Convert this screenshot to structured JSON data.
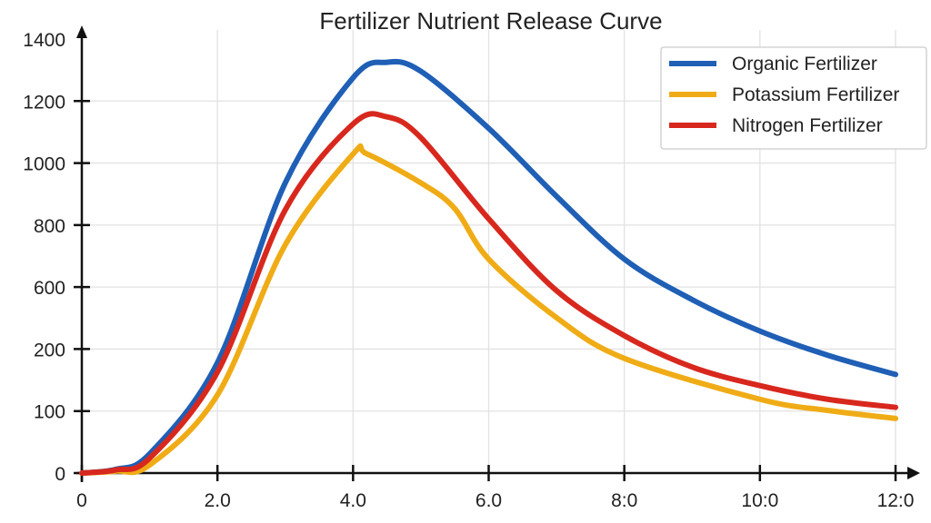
{
  "chart_data": {
    "type": "line",
    "title": "Fertilizer Nutrient Release Curve",
    "xlabel": "",
    "ylabel": "",
    "x_ticks": [
      {
        "value": 0,
        "label": "0"
      },
      {
        "value": 2,
        "label": "2.0"
      },
      {
        "value": 4,
        "label": "4.0"
      },
      {
        "value": 6,
        "label": "6.0"
      },
      {
        "value": 8,
        "label": "8:0"
      },
      {
        "value": 10,
        "label": "10:0"
      },
      {
        "value": 12,
        "label": "12:0"
      }
    ],
    "y_ticks": [
      "0",
      "100",
      "200",
      "600",
      "800",
      "1000",
      "1200",
      "1400"
    ],
    "y_tick_values": [
      0,
      100,
      200,
      600,
      800,
      1000,
      1200,
      1400
    ],
    "xlim": [
      0,
      12
    ],
    "ylim": [
      0,
      1400
    ],
    "grid": true,
    "legend_position": "top-right",
    "x": [
      0,
      0.5,
      1,
      2,
      3,
      4,
      4.5,
      5,
      6,
      7,
      8,
      9,
      10,
      11,
      12
    ],
    "series": [
      {
        "name": "Organic Fertilizer",
        "color": "#1f5fb5",
        "values": [
          0,
          6,
          31,
          178,
          936,
          1275,
          1325,
          1296,
          1112,
          893,
          690,
          519,
          316,
          190,
          159
        ]
      },
      {
        "name": "Potassium Fertilizer",
        "color": "#f0ac16",
        "values": [
          0,
          3,
          13,
          126,
          736,
          1029,
          1030,
          936,
          853,
          690,
          403,
          185,
          119,
          101,
          88
        ],
        "x_override": [
          0,
          0.5,
          1,
          2,
          3,
          4,
          4.2,
          5,
          5.5,
          6,
          7,
          8,
          10,
          11,
          12
        ]
      },
      {
        "name": "Nitrogen Fertilizer",
        "color": "#d8281e",
        "values": [
          0,
          5,
          24,
          163,
          849,
          1126,
          1149,
          1082,
          820,
          577,
          287,
          171,
          141,
          119,
          106
        ]
      }
    ]
  }
}
